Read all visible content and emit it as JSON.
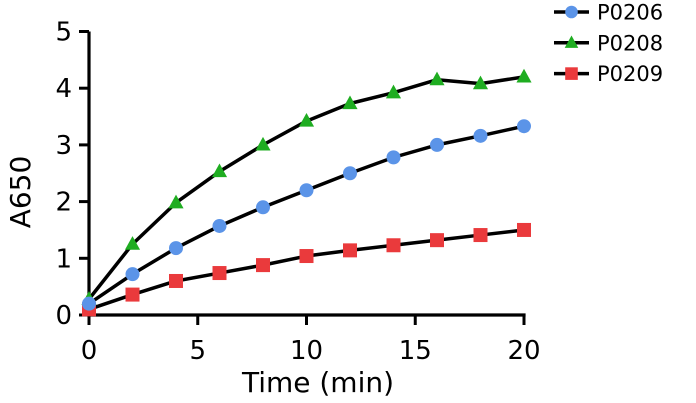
{
  "chart_data": {
    "type": "line",
    "title": "",
    "xlabel": "Time (min)",
    "ylabel": "A650",
    "x": [
      0,
      2,
      4,
      6,
      8,
      10,
      12,
      14,
      16,
      18,
      20
    ],
    "xlim": [
      0,
      20
    ],
    "ylim": [
      0,
      5
    ],
    "xticks": [
      0,
      5,
      10,
      15,
      20
    ],
    "yticks": [
      0,
      1,
      2,
      3,
      4,
      5
    ],
    "grid": false,
    "legend_position": "top-right-outside",
    "line_color": "#000000",
    "axis_color": "#000000",
    "background_color": "#ffffff",
    "series": [
      {
        "name": "P0206",
        "marker": "circle",
        "color": "#5b94e8",
        "values": [
          0.2,
          0.72,
          1.18,
          1.57,
          1.9,
          2.2,
          2.5,
          2.78,
          3.0,
          3.16,
          3.33
        ]
      },
      {
        "name": "P0208",
        "marker": "triangle",
        "color": "#1fad21",
        "values": [
          0.28,
          1.25,
          1.98,
          2.53,
          3.0,
          3.42,
          3.73,
          3.92,
          4.15,
          4.08,
          4.2
        ]
      },
      {
        "name": "P0209",
        "marker": "square",
        "color": "#ea3a3c",
        "values": [
          0.1,
          0.36,
          0.6,
          0.74,
          0.88,
          1.04,
          1.14,
          1.23,
          1.32,
          1.41,
          1.5
        ]
      }
    ]
  }
}
